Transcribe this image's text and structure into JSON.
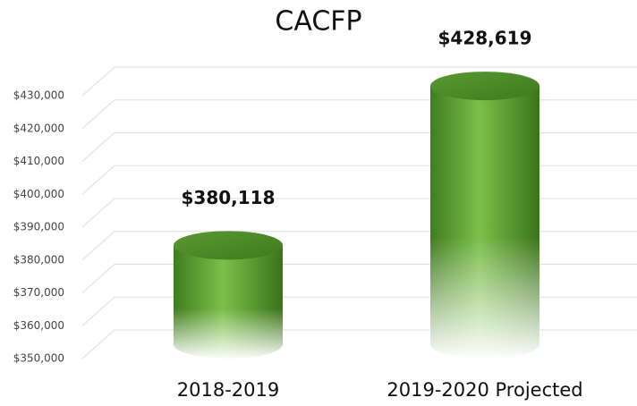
{
  "chart_data": {
    "type": "bar",
    "title": "CACFP",
    "categories": [
      "2018-2019",
      "2019-2020 Projected"
    ],
    "values": [
      380118,
      428619
    ],
    "value_labels": [
      "$380,118",
      "$428,619"
    ],
    "color": "#6aa93c",
    "ylim": [
      350000,
      430000
    ],
    "yticks": [
      {
        "value": 350000,
        "label": "$350,000"
      },
      {
        "value": 360000,
        "label": "$360,000"
      },
      {
        "value": 370000,
        "label": "$370,000"
      },
      {
        "value": 380000,
        "label": "$380,000"
      },
      {
        "value": 390000,
        "label": "$390,000"
      },
      {
        "value": 400000,
        "label": "$400,000"
      },
      {
        "value": 410000,
        "label": "$410,000"
      },
      {
        "value": 420000,
        "label": "$420,000"
      },
      {
        "value": 430000,
        "label": "$430,000"
      }
    ],
    "grid": true
  }
}
